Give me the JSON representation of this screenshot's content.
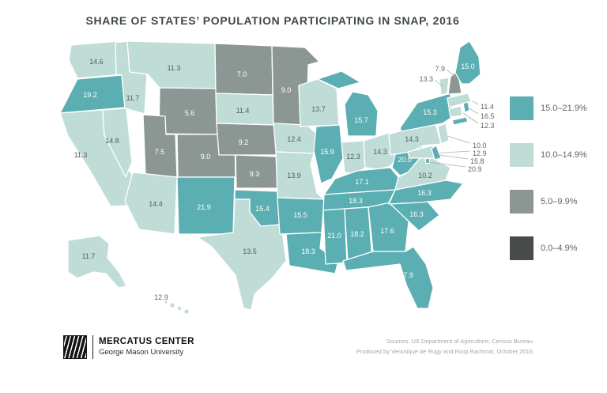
{
  "title": "SHARE OF STATES’ POPULATION PARTICIPATING IN SNAP, 2016",
  "footer": {
    "logo_title": "MERCATUS CENTER",
    "logo_subtitle": "George Mason University",
    "source_line1": "Sources: US Department of Agriculture; Census Bureau.",
    "source_line2": "Produced by Veronique de Rugy and Rizqi Rachmat, October 2016."
  },
  "chart_data": {
    "type": "choropleth_map",
    "title": "Share of states’ population participating in SNAP, 2016",
    "unit": "percent of state population participating in SNAP",
    "legend_position": "right",
    "bins": [
      {
        "label": "15.0–21.9%",
        "min": 15.0,
        "max": 21.9,
        "color": "#5BAEB2"
      },
      {
        "label": "10.0–14.9%",
        "min": 10.0,
        "max": 14.9,
        "color": "#C0DCD7"
      },
      {
        "label": "5.0–9.9%",
        "min": 5.0,
        "max": 9.9,
        "color": "#8C9794"
      },
      {
        "label": "0.0–4.9%",
        "min": 0.0,
        "max": 4.9,
        "color": "#474C4B"
      }
    ],
    "states": [
      {
        "abbr": "WA",
        "name": "Washington",
        "value": 14.6,
        "bin": 1
      },
      {
        "abbr": "OR",
        "name": "Oregon",
        "value": 19.2,
        "bin": 0
      },
      {
        "abbr": "CA",
        "name": "California",
        "value": 11.3,
        "bin": 1
      },
      {
        "abbr": "NV",
        "name": "Nevada",
        "value": 14.8,
        "bin": 1
      },
      {
        "abbr": "ID",
        "name": "Idaho",
        "value": 11.7,
        "bin": 1
      },
      {
        "abbr": "MT",
        "name": "Montana",
        "value": 11.3,
        "bin": 1
      },
      {
        "abbr": "WY",
        "name": "Wyoming",
        "value": 5.6,
        "bin": 2
      },
      {
        "abbr": "UT",
        "name": "Utah",
        "value": 7.5,
        "bin": 2
      },
      {
        "abbr": "CO",
        "name": "Colorado",
        "value": 9.0,
        "bin": 2
      },
      {
        "abbr": "AZ",
        "name": "Arizona",
        "value": 14.4,
        "bin": 1
      },
      {
        "abbr": "NM",
        "name": "New Mexico",
        "value": 21.9,
        "bin": 0
      },
      {
        "abbr": "ND",
        "name": "North Dakota",
        "value": 7.0,
        "bin": 2
      },
      {
        "abbr": "SD",
        "name": "South Dakota",
        "value": 11.4,
        "bin": 1
      },
      {
        "abbr": "NE",
        "name": "Nebraska",
        "value": 9.2,
        "bin": 2
      },
      {
        "abbr": "KS",
        "name": "Kansas",
        "value": 9.3,
        "bin": 2
      },
      {
        "abbr": "OK",
        "name": "Oklahoma",
        "value": 15.4,
        "bin": 0
      },
      {
        "abbr": "TX",
        "name": "Texas",
        "value": 13.5,
        "bin": 1
      },
      {
        "abbr": "MN",
        "name": "Minnesota",
        "value": 9.0,
        "bin": 2
      },
      {
        "abbr": "IA",
        "name": "Iowa",
        "value": 12.4,
        "bin": 1
      },
      {
        "abbr": "MO",
        "name": "Missouri",
        "value": 13.9,
        "bin": 1
      },
      {
        "abbr": "AR",
        "name": "Arkansas",
        "value": 15.5,
        "bin": 0
      },
      {
        "abbr": "LA",
        "name": "Louisiana",
        "value": 18.3,
        "bin": 0
      },
      {
        "abbr": "WI",
        "name": "Wisconsin",
        "value": 13.7,
        "bin": 1
      },
      {
        "abbr": "IL",
        "name": "Illinois",
        "value": 15.9,
        "bin": 0
      },
      {
        "abbr": "MI",
        "name": "Michigan",
        "value": 15.7,
        "bin": 0
      },
      {
        "abbr": "IN",
        "name": "Indiana",
        "value": 12.3,
        "bin": 1
      },
      {
        "abbr": "OH",
        "name": "Ohio",
        "value": 14.3,
        "bin": 1
      },
      {
        "abbr": "KY",
        "name": "Kentucky",
        "value": 17.1,
        "bin": 0
      },
      {
        "abbr": "TN",
        "name": "Tennessee",
        "value": 18.3,
        "bin": 0
      },
      {
        "abbr": "MS",
        "name": "Mississippi",
        "value": 21.0,
        "bin": 0
      },
      {
        "abbr": "AL",
        "name": "Alabama",
        "value": 18.2,
        "bin": 0
      },
      {
        "abbr": "GA",
        "name": "Georgia",
        "value": 17.6,
        "bin": 0
      },
      {
        "abbr": "FL",
        "name": "Florida",
        "value": 17.9,
        "bin": 0
      },
      {
        "abbr": "SC",
        "name": "South Carolina",
        "value": 16.3,
        "bin": 0
      },
      {
        "abbr": "NC",
        "name": "North Carolina",
        "value": 16.3,
        "bin": 0
      },
      {
        "abbr": "VA",
        "name": "Virginia",
        "value": 10.2,
        "bin": 1
      },
      {
        "abbr": "WV",
        "name": "West Virginia",
        "value": 20.0,
        "bin": 0
      },
      {
        "abbr": "PA",
        "name": "Pennsylvania",
        "value": 14.3,
        "bin": 1
      },
      {
        "abbr": "NY",
        "name": "New York",
        "value": 15.3,
        "bin": 0
      },
      {
        "abbr": "NJ",
        "name": "New Jersey",
        "value": 10.0,
        "bin": 1
      },
      {
        "abbr": "CT",
        "name": "Connecticut",
        "value": 12.3,
        "bin": 1
      },
      {
        "abbr": "RI",
        "name": "Rhode Island",
        "value": 16.5,
        "bin": 0
      },
      {
        "abbr": "MA",
        "name": "Massachusetts",
        "value": 11.4,
        "bin": 1
      },
      {
        "abbr": "VT",
        "name": "Vermont",
        "value": 13.3,
        "bin": 1
      },
      {
        "abbr": "NH",
        "name": "New Hampshire",
        "value": 7.9,
        "bin": 2
      },
      {
        "abbr": "ME",
        "name": "Maine",
        "value": 15.0,
        "bin": 0
      },
      {
        "abbr": "MD",
        "name": "Maryland",
        "value": 12.9,
        "bin": 1
      },
      {
        "abbr": "DE",
        "name": "Delaware",
        "value": 15.8,
        "bin": 0
      },
      {
        "abbr": "DC",
        "name": "District of Columbia",
        "value": 20.9,
        "bin": 0
      },
      {
        "abbr": "AK",
        "name": "Alaska",
        "value": 11.7,
        "bin": 1
      },
      {
        "abbr": "HI",
        "name": "Hawaii",
        "value": 12.9,
        "bin": 1
      }
    ]
  }
}
